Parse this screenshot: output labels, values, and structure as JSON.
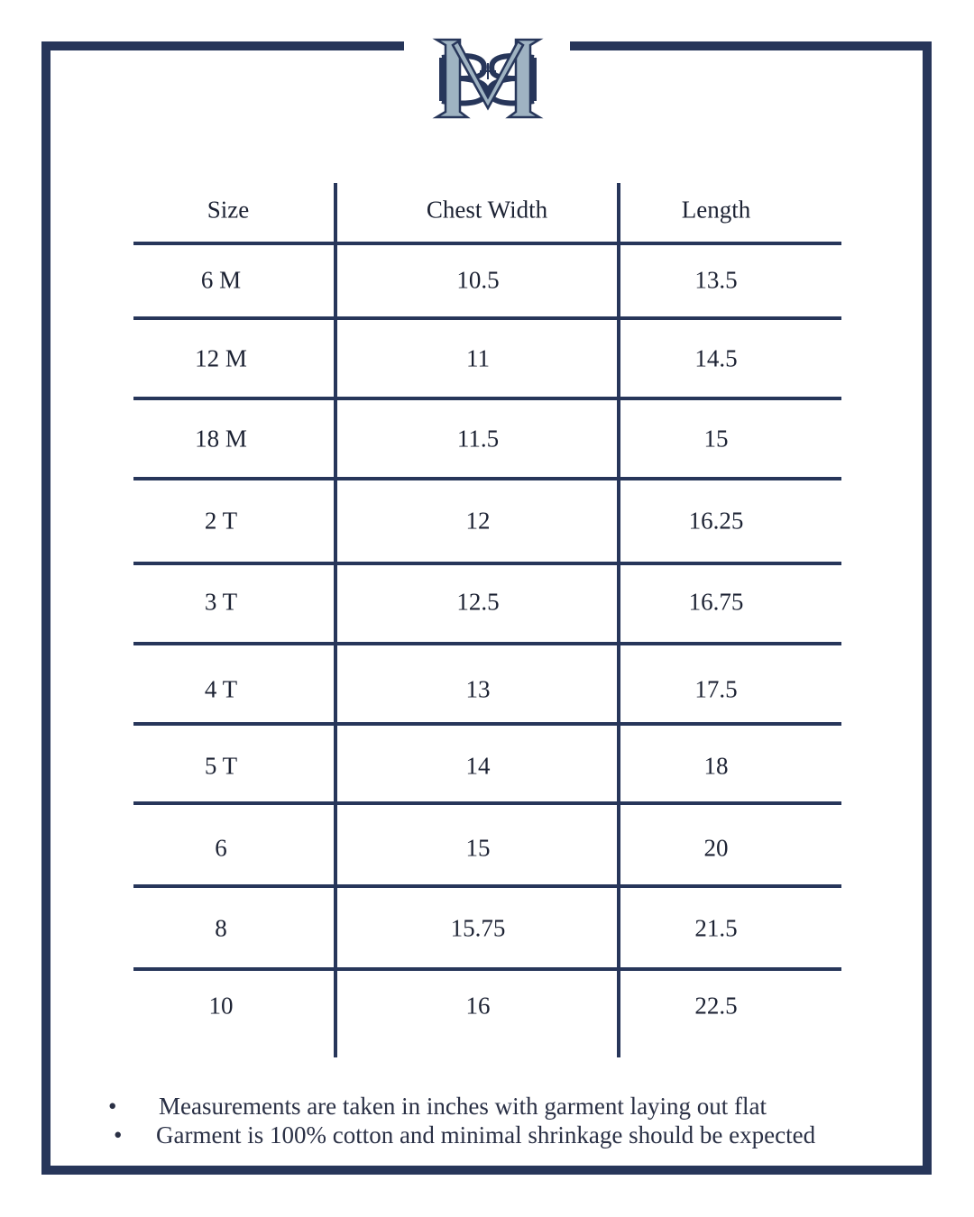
{
  "colors": {
    "frame": "#27365a",
    "logo_light": "#9fb3c2",
    "logo_dark": "#27365a"
  },
  "logo": {
    "text": "BM"
  },
  "table": {
    "headers": [
      "Size",
      "Chest Width",
      "Length"
    ],
    "rows": [
      [
        "6 M",
        "10.5",
        "13.5"
      ],
      [
        "12 M",
        "11",
        "14.5"
      ],
      [
        "18 M",
        "11.5",
        "15"
      ],
      [
        "2 T",
        "12",
        "16.25"
      ],
      [
        "3 T",
        "12.5",
        "16.75"
      ],
      [
        "4 T",
        "13",
        "17.5"
      ],
      [
        "5 T",
        "14",
        "18"
      ],
      [
        "6",
        "15",
        "20"
      ],
      [
        "8",
        "15.75",
        "21.5"
      ],
      [
        "10",
        "16",
        "22.5"
      ]
    ]
  },
  "notes": [
    "Measurements are taken in inches with garment laying out flat",
    "Garment is 100% cotton and minimal shrinkage should be expected"
  ]
}
